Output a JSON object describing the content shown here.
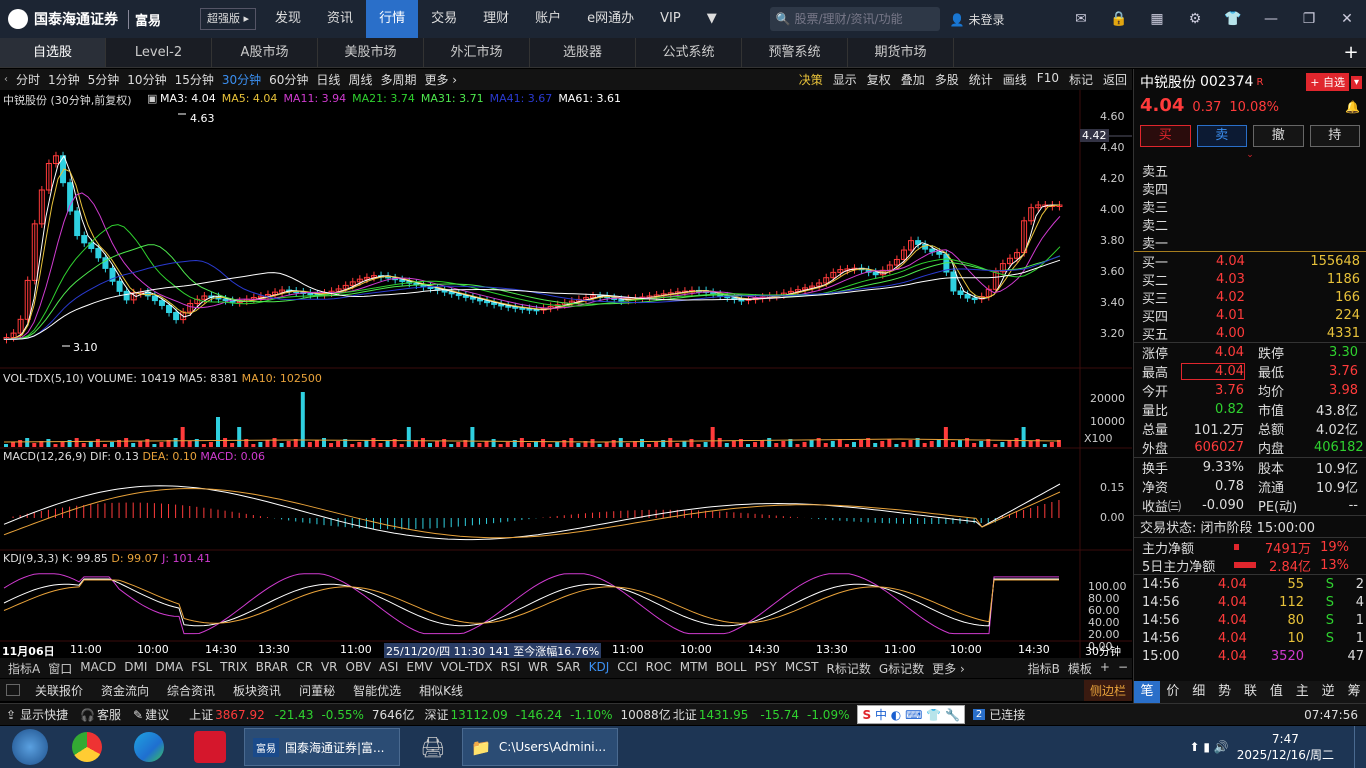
{
  "top": {
    "brand": "国泰海通证券",
    "brand_sub": "富易",
    "version": "超强版",
    "nav": [
      "发现",
      "资讯",
      "行情",
      "交易",
      "理财",
      "账户",
      "e网通办",
      "VIP"
    ],
    "active_nav": "行情",
    "search_placeholder": "股票/理财/资讯/功能",
    "login": "未登录"
  },
  "tabs": [
    "自选股",
    "Level-2",
    "A股市场",
    "美股市场",
    "外汇市场",
    "选股器",
    "公式系统",
    "预警系统",
    "期货市场"
  ],
  "periods": [
    "分时",
    "1分钟",
    "5分钟",
    "10分钟",
    "15分钟",
    "30分钟",
    "60分钟",
    "日线",
    "周线",
    "多周期",
    "更多 ›"
  ],
  "active_period": "30分钟",
  "tools": [
    "决策",
    "显示",
    "复权",
    "叠加",
    "多股",
    "统计",
    "画线",
    "F10",
    "标记",
    "返回"
  ],
  "main": {
    "title": "中锐股份 (30分钟,前复权)",
    "ma": [
      {
        "t": "MA3: 4.04",
        "c": "#ffffff"
      },
      {
        "t": "MA5: 4.04",
        "c": "#e8c23a"
      },
      {
        "t": "MA11: 3.94",
        "c": "#d03bd0"
      },
      {
        "t": "MA21: 3.74",
        "c": "#2fd12f"
      },
      {
        "t": "MA31: 3.71",
        "c": "#4ee84e"
      },
      {
        "t": "MA41: 3.67",
        "c": "#2a3ad0"
      },
      {
        "t": "MA61: 3.61",
        "c": "#ffffff"
      }
    ],
    "hi": "4.63",
    "lo": "3.10",
    "cur": "4.42",
    "yticks": [
      "4.60",
      "4.40",
      "4.20",
      "4.00",
      "3.80",
      "3.60",
      "3.40",
      "3.20"
    ]
  },
  "vol": {
    "label": "VOL-TDX(5,10)",
    "v": "VOLUME: 10419",
    "ma5": "MA5: 8381",
    "ma10": "MA10: 102500",
    "yticks": [
      "20000",
      "10000"
    ],
    "unit": "X100"
  },
  "macd": {
    "label": "MACD(12,26,9)",
    "dif": "DIF: 0.13",
    "dea": "DEA: 0.10",
    "macd": "MACD: 0.06",
    "yticks": [
      "0.15",
      "0.00"
    ]
  },
  "kdj": {
    "label": "KDJ(9,3,3)",
    "k": "K: 99.85",
    "d": "D: 99.07",
    "j": "J: 101.41",
    "yticks": [
      "100.00",
      "80.00",
      "60.00",
      "40.00",
      "20.00",
      "0.00"
    ]
  },
  "xaxis": {
    "date": "11月06日",
    "ticks": [
      "11:00",
      "10:00",
      "14:30",
      "13:30",
      "11:00"
    ],
    "cursor": "25/11/20/四 11:30 141 至今涨幅16.76%",
    "ticks2": [
      "11:00",
      "10:00",
      "14:30",
      "13:30",
      "11:00",
      "10:00",
      "14:30"
    ],
    "period": "30分钟"
  },
  "indicators": [
    "指标A",
    "窗口",
    "MACD",
    "DMI",
    "DMA",
    "FSL",
    "TRIX",
    "BRAR",
    "CR",
    "VR",
    "OBV",
    "ASI",
    "EMV",
    "VOL-TDX",
    "RSI",
    "WR",
    "SAR",
    "KDJ",
    "CCI",
    "ROC",
    "MTM",
    "BOLL",
    "PSY",
    "MCST",
    "R标记数",
    "G标记数",
    "更多 ›"
  ],
  "active_ind": "KDJ",
  "ind_right": [
    "指标B",
    "模板",
    "+",
    "−"
  ],
  "links": [
    "关联报价",
    "资金流向",
    "综合资讯",
    "板块资讯",
    "问董秘",
    "智能优选",
    "相似K线"
  ],
  "sidebar_tag": "侧边栏",
  "stock": {
    "name": "中锐股份",
    "code": "002374",
    "flag": "R",
    "add": "+ 自选",
    "price": "4.04",
    "chg": "0.37",
    "pct": "10.08%",
    "btns": [
      "买",
      "卖",
      "撤",
      "持"
    ]
  },
  "asks": [
    "卖五",
    "卖四",
    "卖三",
    "卖二",
    "卖一"
  ],
  "bids": [
    {
      "l": "买一",
      "p": "4.04",
      "v": "155648"
    },
    {
      "l": "买二",
      "p": "4.03",
      "v": "1186"
    },
    {
      "l": "买三",
      "p": "4.02",
      "v": "166"
    },
    {
      "l": "买四",
      "p": "4.01",
      "v": "224"
    },
    {
      "l": "买五",
      "p": "4.00",
      "v": "4331"
    }
  ],
  "stats": [
    [
      "涨停",
      "4.04",
      "red",
      "跌停",
      "3.30",
      "grn"
    ],
    [
      "最高",
      "4.04",
      "red",
      "最低",
      "3.76",
      "red"
    ],
    [
      "今开",
      "3.76",
      "red",
      "均价",
      "3.98",
      "red"
    ],
    [
      "量比",
      "0.82",
      "grn",
      "市值",
      "43.8亿",
      "wht"
    ],
    [
      "总量",
      "101.2万",
      "wht",
      "总额",
      "4.02亿",
      "wht"
    ],
    [
      "外盘",
      "606027",
      "red",
      "内盘",
      "406182",
      "grn"
    ]
  ],
  "stats2": [
    [
      "换手",
      "9.33%",
      "股本",
      "10.9亿"
    ],
    [
      "净资",
      "0.78",
      "流通",
      "10.9亿"
    ],
    [
      "收益㈢",
      "-0.090",
      "PE(动)",
      "--"
    ]
  ],
  "trade_state": "交易状态: 闭市阶段 15:00:00",
  "flow": [
    {
      "l": "主力净额",
      "v": "7491万",
      "p": "19%"
    },
    {
      "l": "5日主力净额",
      "v": "2.84亿",
      "p": "13%"
    }
  ],
  "ticks": [
    {
      "t": "14:56",
      "p": "4.04",
      "v": "55",
      "s": "S",
      "n": "2"
    },
    {
      "t": "14:56",
      "p": "4.04",
      "v": "112",
      "s": "S",
      "n": "4"
    },
    {
      "t": "14:56",
      "p": "4.04",
      "v": "80",
      "s": "S",
      "n": "1"
    },
    {
      "t": "14:56",
      "p": "4.04",
      "v": "10",
      "s": "S",
      "n": "1"
    },
    {
      "t": "15:00",
      "p": "4.04",
      "v": "3520",
      "s": "",
      "n": "47"
    }
  ],
  "rtabs": [
    "笔",
    "价",
    "细",
    "势",
    "联",
    "值",
    "主",
    "逆",
    "筹"
  ],
  "status": {
    "l1": "显示快捷",
    "l2": "客服",
    "l3": "建议",
    "sh": "上证",
    "shv": "3867.92",
    "shc": "-21.43",
    "shp": "-0.55%",
    "sha": "7646亿",
    "sz": "深证",
    "szv": "13112.09",
    "szc": "-146.24",
    "szp": "-1.10%",
    "sza": "10088亿",
    "bz": "北证",
    "bzv": "1431.95",
    "bzc": "-15.74",
    "bzp": "-1.09%",
    "conn": "已连接",
    "time": "07:47:56",
    "ime": "中"
  },
  "taskbar": {
    "app1": "国泰海通证券|富...",
    "app2": "C:\\Users\\Admini...",
    "time": "7:47",
    "date": "2025/12/16/周二"
  }
}
